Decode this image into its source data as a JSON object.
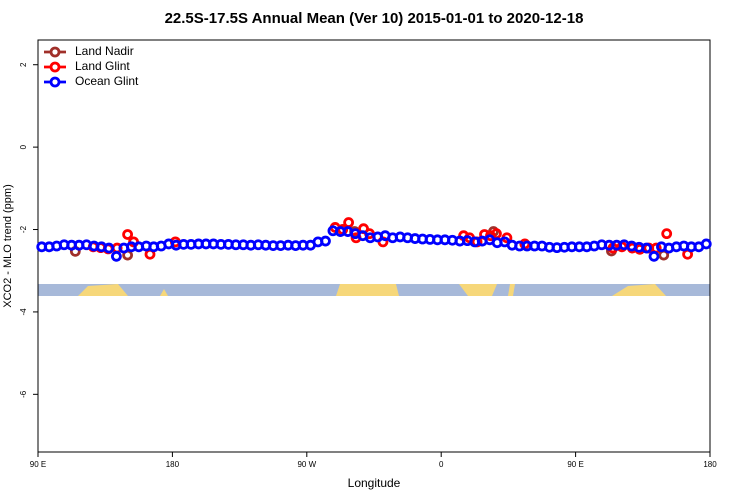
{
  "chart_data": {
    "type": "scatter",
    "title": "22.5S-17.5S Annual Mean (Ver 10)   2015-01-01 to 2020-12-18",
    "x_label": "Longitude",
    "y_label": "XCO2 - MLO trend (ppm)",
    "xlim": [
      90,
      540
    ],
    "ylim": [
      -7.4,
      2.6
    ],
    "xticks": [
      {
        "value": 90,
        "label": "90 E"
      },
      180,
      {
        "value": 270,
        "label": "90 W"
      },
      {
        "value": 360,
        "label": "0"
      },
      {
        "value": 450,
        "label": "90 E"
      },
      {
        "value": 540,
        "label": "180"
      }
    ],
    "yticks": [
      2,
      0,
      -2,
      -4,
      -6
    ],
    "legend": "top-left",
    "series": [
      {
        "name": "Land Nadir",
        "color": "#a0302a",
        "x": [
          115,
          150,
          294,
          302,
          395,
          474,
          509
        ],
        "values": [
          -2.53,
          -2.62,
          -2.0,
          -2.05,
          -2.05,
          -2.52,
          -2.62
        ]
      },
      {
        "name": "Land Glint",
        "color": "#ff0000",
        "x": [
          127,
          132,
          137,
          143,
          150,
          154,
          165,
          182,
          289,
          294,
          298,
          303,
          308,
          312,
          321,
          375,
          379,
          384,
          389,
          393,
          397,
          404,
          416,
          475,
          481,
          488,
          493,
          499,
          504,
          511,
          525
        ],
        "values": [
          -2.42,
          -2.44,
          -2.47,
          -2.45,
          -2.12,
          -2.3,
          -2.6,
          -2.3,
          -1.95,
          -2.0,
          -1.83,
          -2.2,
          -1.98,
          -2.1,
          -2.3,
          -2.15,
          -2.2,
          -2.3,
          -2.12,
          -2.15,
          -2.1,
          -2.2,
          -2.35,
          -2.45,
          -2.42,
          -2.45,
          -2.48,
          -2.45,
          -2.45,
          -2.1,
          -2.6
        ]
      },
      {
        "name": "Ocean Glint",
        "color": "#0000ff",
        "x": [
          92.5,
          97.5,
          102.5,
          107.5,
          112.5,
          117.5,
          122.5,
          127.5,
          132.5,
          137.5,
          142.5,
          147.5,
          152.5,
          157.5,
          162.5,
          167.5,
          172.5,
          177.5,
          182.5,
          187.5,
          192.5,
          197.5,
          202.5,
          207.5,
          212.5,
          217.5,
          222.5,
          227.5,
          232.5,
          237.5,
          242.5,
          247.5,
          252.5,
          257.5,
          262.5,
          267.5,
          272.5,
          277.5,
          282.5,
          287.5,
          292.5,
          297.5,
          302.5,
          307.5,
          312.5,
          317.5,
          322.5,
          327.5,
          332.5,
          337.5,
          342.5,
          347.5,
          352.5,
          357.5,
          362.5,
          367.5,
          372.5,
          377.5,
          382.5,
          387.5,
          392.5,
          397.5,
          402.5,
          407.5,
          412.5,
          417.5,
          422.5,
          427.5,
          432.5,
          437.5,
          442.5,
          447.5,
          452.5,
          457.5,
          462.5,
          467.5,
          472.5,
          477.5,
          482.5,
          487.5,
          492.5,
          497.5,
          502.5,
          507.5,
          512.5,
          517.5,
          522.5,
          527.5,
          532.5,
          537.5
        ],
        "values": [
          -2.42,
          -2.42,
          -2.4,
          -2.37,
          -2.38,
          -2.38,
          -2.37,
          -2.4,
          -2.42,
          -2.45,
          -2.65,
          -2.45,
          -2.42,
          -2.42,
          -2.4,
          -2.42,
          -2.4,
          -2.35,
          -2.38,
          -2.36,
          -2.36,
          -2.35,
          -2.35,
          -2.35,
          -2.36,
          -2.36,
          -2.37,
          -2.37,
          -2.38,
          -2.37,
          -2.38,
          -2.39,
          -2.39,
          -2.38,
          -2.39,
          -2.38,
          -2.38,
          -2.3,
          -2.28,
          -2.03,
          -2.05,
          -2.05,
          -2.1,
          -2.15,
          -2.2,
          -2.18,
          -2.15,
          -2.2,
          -2.18,
          -2.2,
          -2.22,
          -2.23,
          -2.24,
          -2.25,
          -2.25,
          -2.26,
          -2.28,
          -2.27,
          -2.3,
          -2.28,
          -2.25,
          -2.32,
          -2.3,
          -2.38,
          -2.4,
          -2.4,
          -2.4,
          -2.4,
          -2.43,
          -2.44,
          -2.43,
          -2.42,
          -2.42,
          -2.42,
          -2.4,
          -2.37,
          -2.38,
          -2.38,
          -2.37,
          -2.4,
          -2.43,
          -2.45,
          -2.65,
          -2.42,
          -2.45,
          -2.42,
          -2.4,
          -2.42,
          -2.42,
          -2.35
        ]
      }
    ]
  }
}
